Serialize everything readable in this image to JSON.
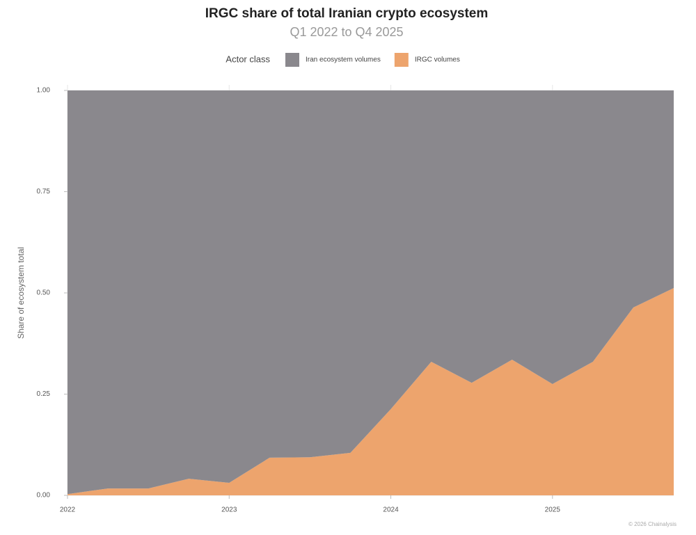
{
  "chart_data": {
    "type": "stacked_area",
    "title": "IRGC share of total Iranian crypto ecosystem",
    "subtitle": "Q1 2022 to Q4 2025",
    "legend_title": "Actor class",
    "y_label": "Share of ecosystem total",
    "credit": "© 2026 Chainalysis",
    "x": [
      2022,
      2022.25,
      2022.5,
      2022.75,
      2023,
      2023.25,
      2023.5,
      2023.75,
      2024,
      2024.25,
      2024.5,
      2024.75,
      2025,
      2025.25,
      2025.5,
      2025.75
    ],
    "series": [
      {
        "name": "Iran ecosystem volumes",
        "color": "#8a888d",
        "values": [
          0.997,
          0.983,
          0.983,
          0.959,
          0.969,
          0.907,
          0.906,
          0.895,
          0.787,
          0.67,
          0.722,
          0.665,
          0.725,
          0.67,
          0.536,
          0.488
        ]
      },
      {
        "name": "IRGC volumes",
        "color": "#eda46d",
        "values": [
          0.003,
          0.017,
          0.017,
          0.041,
          0.031,
          0.093,
          0.094,
          0.105,
          0.213,
          0.33,
          0.278,
          0.335,
          0.275,
          0.33,
          0.464,
          0.512
        ]
      }
    ],
    "xlim": [
      2022,
      2025.75
    ],
    "xticks": [
      2022,
      2023,
      2024,
      2025
    ],
    "ylim": [
      0,
      1
    ],
    "yticks": [
      {
        "value": 0,
        "label": "0.00"
      },
      {
        "value": 0.25,
        "label": "0.25"
      },
      {
        "value": 0.5,
        "label": "0.50"
      },
      {
        "value": 0.75,
        "label": "0.75"
      },
      {
        "value": 1,
        "label": "1.00"
      }
    ],
    "legend": "top"
  }
}
